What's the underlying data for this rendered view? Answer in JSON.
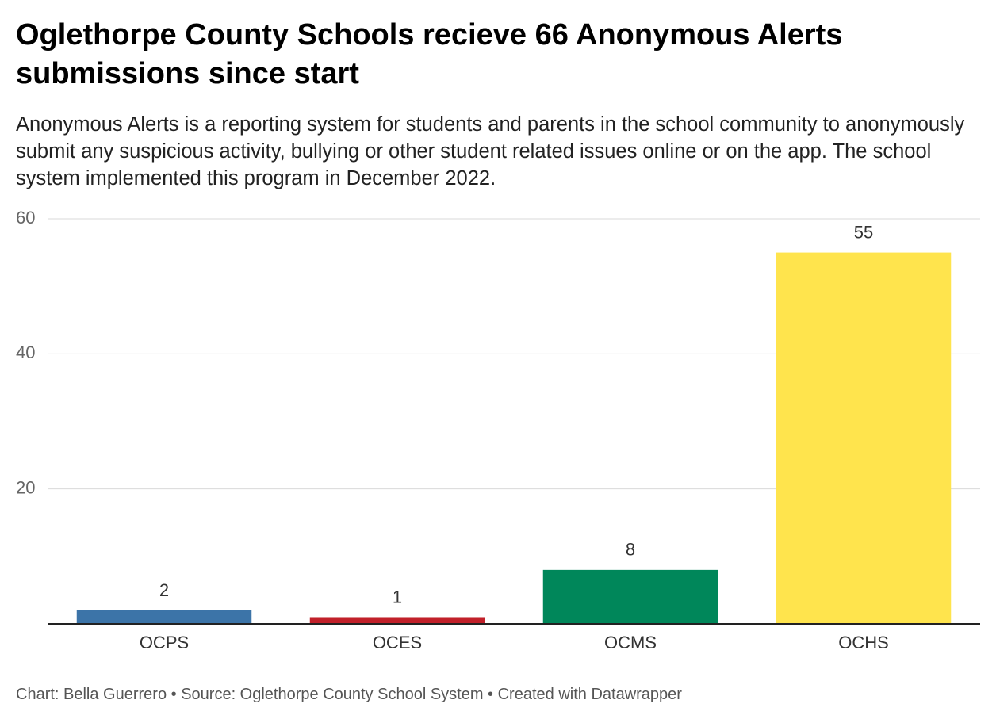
{
  "chart_data": {
    "type": "bar",
    "title": "Oglethorpe County Schools recieve 66 Anonymous Alerts submissions since start",
    "subtitle": "Anonymous Alerts is a reporting system for students and parents in the school community to anonymously submit any suspicious activity, bullying or other student related issues online or on the app. The school system implemented this program in December 2022.",
    "categories": [
      "OCPS",
      "OCES",
      "OCMS",
      "OCHS"
    ],
    "values": [
      2,
      1,
      8,
      55
    ],
    "colors": [
      "#3c74a8",
      "#c1202a",
      "#00875a",
      "#ffe44d"
    ],
    "ylim": [
      0,
      60
    ],
    "yticks": [
      20,
      40,
      60
    ],
    "grid": true,
    "footer": "Chart: Bella Guerrero • Source: Oglethorpe County School System • Created with Datawrapper"
  }
}
